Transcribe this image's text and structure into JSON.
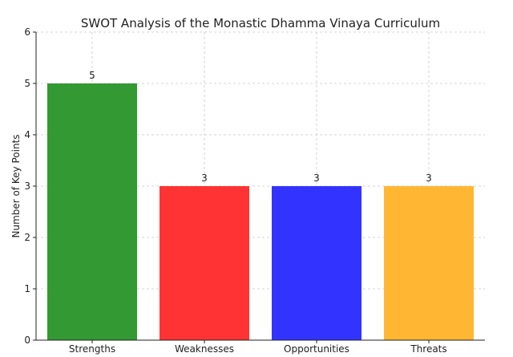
{
  "chart_data": {
    "type": "bar",
    "title": "SWOT Analysis of the Monastic Dhamma Vinaya Curriculum",
    "xlabel": "",
    "ylabel": "Number of Key Points",
    "categories": [
      "Strengths",
      "Weaknesses",
      "Opportunities",
      "Threats"
    ],
    "values": [
      5,
      3,
      3,
      3
    ],
    "colors": [
      "#339933",
      "#ff3333",
      "#3333ff",
      "#ffb733"
    ],
    "ylim": [
      0,
      6
    ],
    "yticks": [
      "0",
      "1",
      "2",
      "3",
      "4",
      "5",
      "6"
    ],
    "grid": true,
    "data_labels": [
      "5",
      "3",
      "3",
      "3"
    ]
  }
}
